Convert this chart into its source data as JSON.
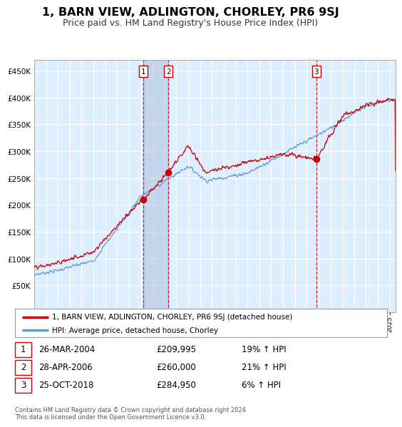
{
  "title": "1, BARN VIEW, ADLINGTON, CHORLEY, PR6 9SJ",
  "subtitle": "Price paid vs. HM Land Registry's House Price Index (HPI)",
  "title_fontsize": 11.5,
  "subtitle_fontsize": 9,
  "ylim": [
    0,
    470000
  ],
  "yticks": [
    0,
    50000,
    100000,
    150000,
    200000,
    250000,
    300000,
    350000,
    400000,
    450000
  ],
  "background_color": "#ffffff",
  "plot_bg_color": "#ddeeff",
  "grid_color": "#ffffff",
  "transactions": [
    {
      "date_num": 2004.22,
      "price": 209995,
      "label": "1"
    },
    {
      "date_num": 2006.32,
      "price": 260000,
      "label": "2"
    },
    {
      "date_num": 2018.81,
      "price": 284950,
      "label": "3"
    }
  ],
  "transaction_labels": [
    {
      "label": "1",
      "date": "26-MAR-2004",
      "price": "£209,995",
      "change": "19% ↑ HPI"
    },
    {
      "label": "2",
      "date": "28-APR-2006",
      "price": "£260,000",
      "change": "21% ↑ HPI"
    },
    {
      "label": "3",
      "date": "25-OCT-2018",
      "price": "£284,950",
      "change": "6% ↑ HPI"
    }
  ],
  "legend_property": "1, BARN VIEW, ADLINGTON, CHORLEY, PR6 9SJ (detached house)",
  "legend_hpi": "HPI: Average price, detached house, Chorley",
  "hpi_color": "#6699cc",
  "property_color": "#cc0000",
  "vline_color": "#cc0000",
  "shade_color": "#aabbdd",
  "footer_text": "Contains HM Land Registry data © Crown copyright and database right 2024.\nThis data is licensed under the Open Government Licence v3.0.",
  "xmin": 1995.0,
  "xmax": 2025.5
}
